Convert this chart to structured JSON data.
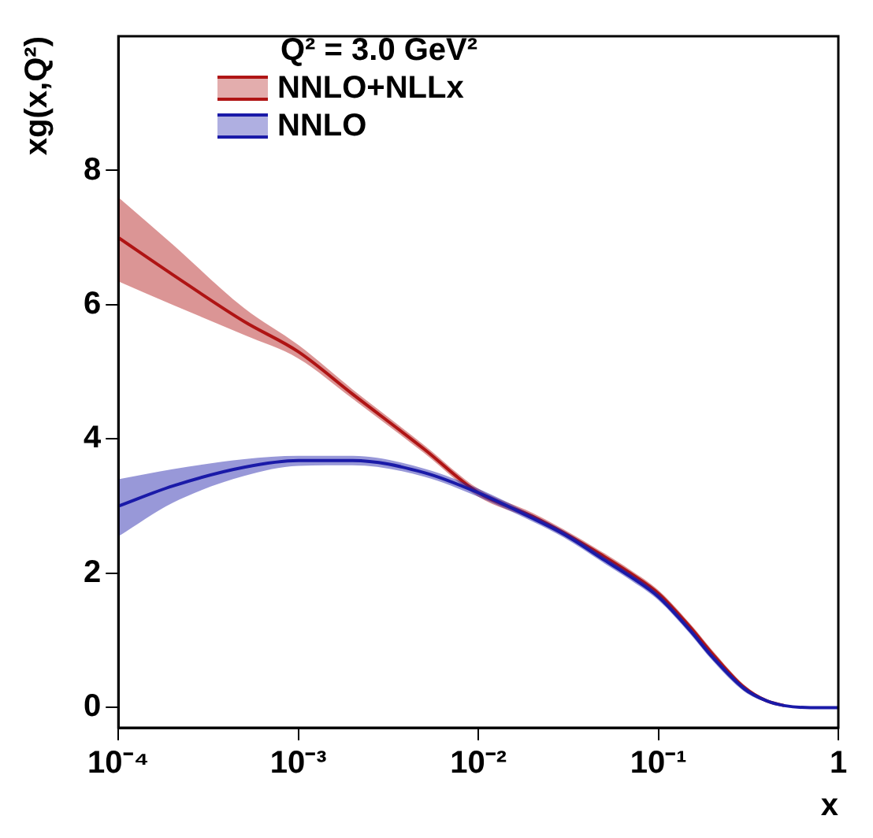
{
  "chart_data": {
    "type": "line",
    "xlabel": "x",
    "ylabel": "xg(x,Q²)",
    "legend_title": "Q² = 3.0 GeV²",
    "legend": "top left",
    "log": "x",
    "grid": false,
    "marker": "none",
    "line_style": "solid",
    "xlim": [
      0.0001,
      1
    ],
    "xticks": [
      {
        "value": 0.0001,
        "label": "10⁻⁴"
      },
      {
        "value": 0.001,
        "label": "10⁻³"
      },
      {
        "value": 0.01,
        "label": "10⁻²"
      },
      {
        "value": 0.1,
        "label": "10⁻¹"
      },
      1
    ],
    "ylim": [
      -0.3,
      10
    ],
    "yticks": [
      0,
      2,
      4,
      6,
      8
    ],
    "series": [
      {
        "name": "NNLO+NLLx",
        "color": "#b01515",
        "x": [
          0.0001,
          0.0002,
          0.0005,
          0.001,
          0.002,
          0.005,
          0.01,
          0.02,
          0.03,
          0.05,
          0.07,
          0.1,
          0.15,
          0.2,
          0.3,
          0.4,
          0.5
        ],
        "values": [
          7.0,
          6.45,
          5.75,
          5.3,
          4.67,
          3.85,
          3.2,
          2.85,
          2.6,
          2.25,
          2.0,
          1.7,
          1.2,
          0.8,
          0.3,
          0.1,
          0.03
        ],
        "lower": [
          6.35,
          6.0,
          5.55,
          5.2,
          4.6,
          3.79,
          3.14,
          2.8,
          2.55,
          2.2,
          1.95,
          1.65,
          1.15,
          0.75,
          0.26,
          0.08,
          0.02
        ],
        "upper": [
          7.6,
          6.9,
          5.95,
          5.4,
          4.74,
          3.91,
          3.26,
          2.9,
          2.65,
          2.3,
          2.05,
          1.75,
          1.25,
          0.85,
          0.34,
          0.12,
          0.04
        ]
      },
      {
        "name": "NNLO",
        "color": "#1a1aa8",
        "x": [
          0.0001,
          0.0002,
          0.0005,
          0.001,
          0.002,
          0.005,
          0.01,
          0.02,
          0.03,
          0.05,
          0.07,
          0.1,
          0.15,
          0.2,
          0.3,
          0.4,
          0.5,
          0.7,
          1
        ],
        "values": [
          3.0,
          3.3,
          3.58,
          3.68,
          3.68,
          3.5,
          3.2,
          2.82,
          2.58,
          2.2,
          1.95,
          1.65,
          1.15,
          0.75,
          0.28,
          0.1,
          0.03,
          0,
          0
        ],
        "lower": [
          2.55,
          3.05,
          3.45,
          3.6,
          3.61,
          3.44,
          3.14,
          2.77,
          2.53,
          2.15,
          1.9,
          1.6,
          1.1,
          0.7,
          0.24,
          0.08,
          0.02,
          0,
          0
        ],
        "upper": [
          3.4,
          3.55,
          3.7,
          3.75,
          3.75,
          3.56,
          3.26,
          2.87,
          2.63,
          2.25,
          2.0,
          1.7,
          1.2,
          0.8,
          0.32,
          0.12,
          0.04,
          0,
          0
        ]
      }
    ]
  }
}
